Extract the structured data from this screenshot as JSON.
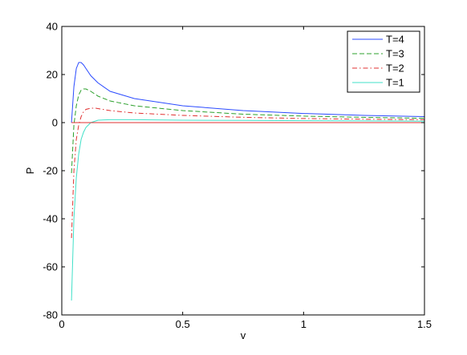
{
  "chart_data": {
    "type": "line",
    "title": "",
    "xlabel": "v",
    "ylabel": "P",
    "xlim": [
      0,
      1.5
    ],
    "ylim": [
      -80,
      40
    ],
    "xticks": [
      0,
      0.5,
      1,
      1.5
    ],
    "xtick_labels": [
      "0",
      "0.5",
      "1",
      "1.5"
    ],
    "yticks": [
      -80,
      -60,
      -40,
      -20,
      0,
      20,
      40
    ],
    "ytick_labels": [
      "-80",
      "-60",
      "-40",
      "-20",
      "0",
      "20",
      "40"
    ],
    "grid": false,
    "legend_position": "top-right",
    "series": [
      {
        "name": "T=4",
        "color": "#2b4bff",
        "dash": "solid",
        "x": [
          0.04,
          0.05,
          0.06,
          0.07,
          0.08,
          0.09,
          0.1,
          0.12,
          0.15,
          0.2,
          0.3,
          0.5,
          0.75,
          1.0,
          1.25,
          1.5
        ],
        "y": [
          0,
          15,
          22.5,
          25,
          25,
          24,
          22.5,
          19.5,
          16.5,
          13,
          10,
          7,
          5,
          3.8,
          3,
          2.5
        ]
      },
      {
        "name": "T=3",
        "color": "#2ca02c",
        "dash": "dashed",
        "x": [
          0.04,
          0.05,
          0.06,
          0.07,
          0.08,
          0.09,
          0.1,
          0.12,
          0.15,
          0.2,
          0.3,
          0.5,
          0.75,
          1.0,
          1.25,
          1.5
        ],
        "y": [
          -21,
          -1,
          7,
          11.5,
          13.5,
          14,
          14,
          13,
          11,
          9,
          7,
          5,
          3.5,
          2.7,
          2.2,
          1.8
        ]
      },
      {
        "name": "T=2",
        "color": "#e03030",
        "dash": "dashdot",
        "x": [
          0.04,
          0.05,
          0.06,
          0.07,
          0.08,
          0.09,
          0.1,
          0.12,
          0.14,
          0.17,
          0.2,
          0.3,
          0.5,
          0.75,
          1.0,
          1.25,
          1.5
        ],
        "y": [
          -48,
          -20,
          -7,
          -1,
          2.5,
          4.5,
          5.5,
          6,
          6,
          5.5,
          5,
          4,
          3,
          2.2,
          1.7,
          1.4,
          1.2
        ]
      },
      {
        "name": "T=1",
        "color": "#40e0c8",
        "dash": "solid",
        "x": [
          0.04,
          0.05,
          0.06,
          0.07,
          0.08,
          0.09,
          0.1,
          0.12,
          0.15,
          0.2,
          0.3,
          0.5,
          0.75,
          1.0,
          1.25,
          1.5
        ],
        "y": [
          -74,
          -40,
          -23,
          -13,
          -7,
          -4,
          -2,
          0,
          1,
          1.2,
          1.2,
          1.0,
          0.9,
          0.8,
          0.7,
          0.6
        ]
      }
    ],
    "reference_line": {
      "y": 0,
      "color": "#e03030"
    }
  }
}
